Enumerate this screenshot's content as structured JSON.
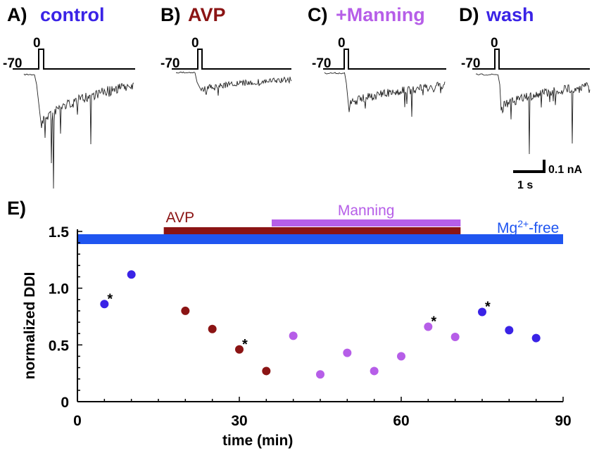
{
  "colors": {
    "control": "#3a23e6",
    "avp": "#8b1414",
    "manning": "#b65ee8",
    "wash": "#3a23e6",
    "mg_bar": "#1f55f0",
    "axis": "#000000"
  },
  "panels": [
    {
      "letter": "A)",
      "label": "control",
      "color_key": "control"
    },
    {
      "letter": "B)",
      "label": "AVP",
      "color_key": "avp"
    },
    {
      "letter": "C)",
      "label": "+Manning",
      "color_key": "manning"
    },
    {
      "letter": "D)",
      "label": "wash",
      "color_key": "wash"
    }
  ],
  "protocol": {
    "holding_mv": "-70",
    "step_mv": "0"
  },
  "scale_bar": {
    "time": "1 s",
    "current": "0.1 nA"
  },
  "chart_data": {
    "type": "scatter",
    "panel_letter": "E)",
    "xlabel": "time (min)",
    "ylabel": "normalized DDI",
    "xlim": [
      0,
      90
    ],
    "ylim": [
      0,
      1.5
    ],
    "xticks": [
      0,
      30,
      60,
      90
    ],
    "xtick_labels": [
      "0",
      "30",
      "60",
      "90"
    ],
    "yticks": [
      0,
      0.5,
      1.0,
      1.5
    ],
    "ytick_labels": [
      "0",
      "0.5",
      "1.0",
      "1.5"
    ],
    "bars": [
      {
        "name": "AVP",
        "label": "AVP",
        "start": 16,
        "end": 71,
        "color_key": "avp"
      },
      {
        "name": "Manning",
        "label": "Manning",
        "start": 36,
        "end": 71,
        "color_key": "manning"
      },
      {
        "name": "Mg-free",
        "label": "Mg",
        "label_sup": "2+",
        "label_suffix": "-free",
        "start": 0,
        "end": 90,
        "color_key": "mg_bar"
      }
    ],
    "series": [
      {
        "name": "control",
        "color_key": "control",
        "points": [
          {
            "x": 5,
            "y": 0.86,
            "star": true
          },
          {
            "x": 10,
            "y": 1.12,
            "star": false
          }
        ]
      },
      {
        "name": "AVP",
        "color_key": "avp",
        "points": [
          {
            "x": 20,
            "y": 0.8,
            "star": false
          },
          {
            "x": 25,
            "y": 0.64,
            "star": false
          },
          {
            "x": 30,
            "y": 0.46,
            "star": true
          },
          {
            "x": 35,
            "y": 0.27,
            "star": false
          }
        ]
      },
      {
        "name": "+Manning",
        "color_key": "manning",
        "points": [
          {
            "x": 40,
            "y": 0.58,
            "star": false
          },
          {
            "x": 45,
            "y": 0.24,
            "star": false
          },
          {
            "x": 50,
            "y": 0.43,
            "star": false
          },
          {
            "x": 55,
            "y": 0.27,
            "star": false
          },
          {
            "x": 60,
            "y": 0.4,
            "star": false
          },
          {
            "x": 65,
            "y": 0.66,
            "star": true
          },
          {
            "x": 70,
            "y": 0.57,
            "star": false
          }
        ]
      },
      {
        "name": "wash",
        "color_key": "wash",
        "points": [
          {
            "x": 75,
            "y": 0.79,
            "star": true
          },
          {
            "x": 80,
            "y": 0.63,
            "star": false
          },
          {
            "x": 85,
            "y": 0.56,
            "star": false
          }
        ]
      }
    ],
    "star_symbol": "*"
  }
}
